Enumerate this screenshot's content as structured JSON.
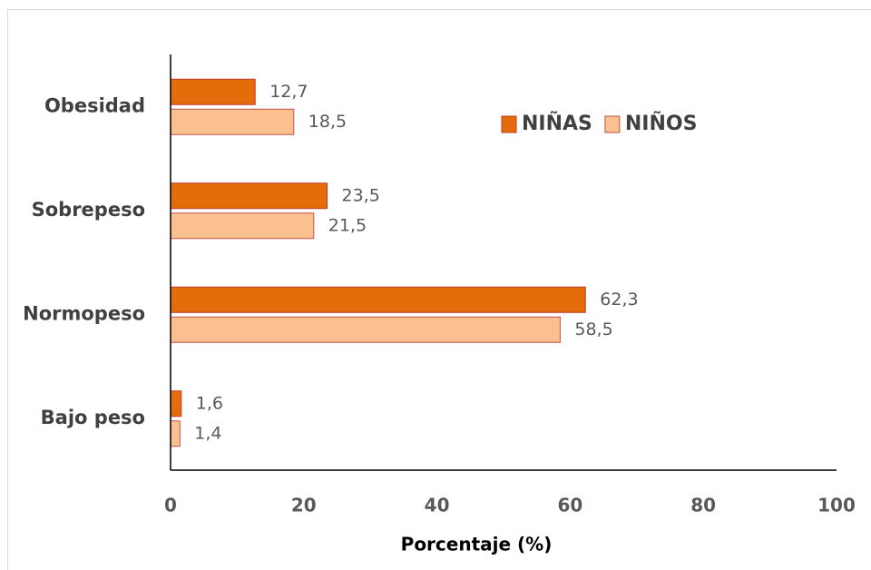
{
  "chart_data": {
    "type": "hbar",
    "categories": [
      "Obesidad",
      "Sobrepeso",
      "Normopeso",
      "Bajo peso"
    ],
    "series": [
      {
        "name": "NIÑAS",
        "color": "#e46c0a",
        "values": [
          12.7,
          23.5,
          62.3,
          1.6
        ],
        "value_labels": [
          "12,7",
          "23,5",
          "62,3",
          "1,6"
        ]
      },
      {
        "name": "NIÑOS",
        "color": "#fac090",
        "values": [
          18.5,
          21.5,
          58.5,
          1.4
        ],
        "value_labels": [
          "18,5",
          "21,5",
          "58,5",
          "1,4"
        ]
      }
    ],
    "x_label": "Porcentaje (%)",
    "xlim": [
      0,
      100
    ],
    "xticks": [
      0,
      20,
      40,
      60,
      80,
      100
    ],
    "grid": false,
    "legend": "upper-right"
  }
}
